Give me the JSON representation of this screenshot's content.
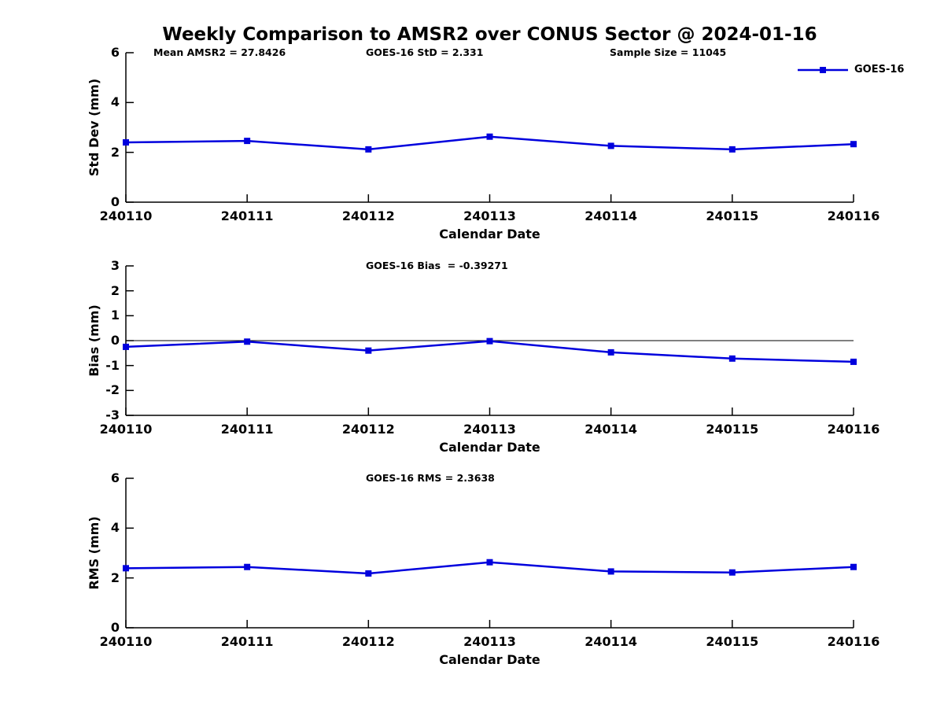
{
  "title": "Weekly Comparison to AMSR2 over CONUS Sector @ 2024-01-16",
  "colors": {
    "series": "#0000dd",
    "axis": "#000000",
    "background": "#ffffff"
  },
  "legend": {
    "label": "GOES-16",
    "position": "top-right"
  },
  "chart_data": [
    {
      "type": "line",
      "name": "std-dev",
      "title_annotations": [
        "Mean AMSR2 = 27.8426",
        "GOES-16 StD = 2.331",
        "Sample Size = 11045"
      ],
      "xlabel": "Calendar Date",
      "ylabel": "Std Dev (mm)",
      "ylim": [
        0,
        6
      ],
      "yticks": [
        6,
        4,
        2,
        0
      ],
      "categories": [
        "240110",
        "240111",
        "240112",
        "240113",
        "240114",
        "240115",
        "240116"
      ],
      "series": [
        {
          "name": "GOES-16",
          "values": [
            2.4,
            2.46,
            2.12,
            2.63,
            2.26,
            2.12,
            2.33
          ]
        }
      ],
      "zero_line": false,
      "grid": false,
      "legend_visible": true
    },
    {
      "type": "line",
      "name": "bias",
      "title_annotations": [
        "GOES-16 Bias  = -0.39271"
      ],
      "xlabel": "Calendar Date",
      "ylabel": "Bias (mm)",
      "ylim": [
        -3,
        3
      ],
      "yticks": [
        3,
        2,
        1,
        0,
        -1,
        -2,
        -3
      ],
      "categories": [
        "240110",
        "240111",
        "240112",
        "240113",
        "240114",
        "240115",
        "240116"
      ],
      "series": [
        {
          "name": "GOES-16",
          "values": [
            -0.25,
            -0.04,
            -0.4,
            -0.02,
            -0.47,
            -0.72,
            -0.85
          ]
        }
      ],
      "zero_line": true,
      "grid": false,
      "legend_visible": false
    },
    {
      "type": "line",
      "name": "rms",
      "title_annotations": [
        "GOES-16 RMS = 2.3638"
      ],
      "xlabel": "Calendar Date",
      "ylabel": "RMS (mm)",
      "ylim": [
        0,
        6
      ],
      "yticks": [
        6,
        4,
        2,
        0
      ],
      "categories": [
        "240110",
        "240111",
        "240112",
        "240113",
        "240114",
        "240115",
        "240116"
      ],
      "series": [
        {
          "name": "GOES-16",
          "values": [
            2.39,
            2.44,
            2.18,
            2.63,
            2.26,
            2.22,
            2.44
          ]
        }
      ],
      "zero_line": false,
      "grid": false,
      "legend_visible": true
    }
  ]
}
